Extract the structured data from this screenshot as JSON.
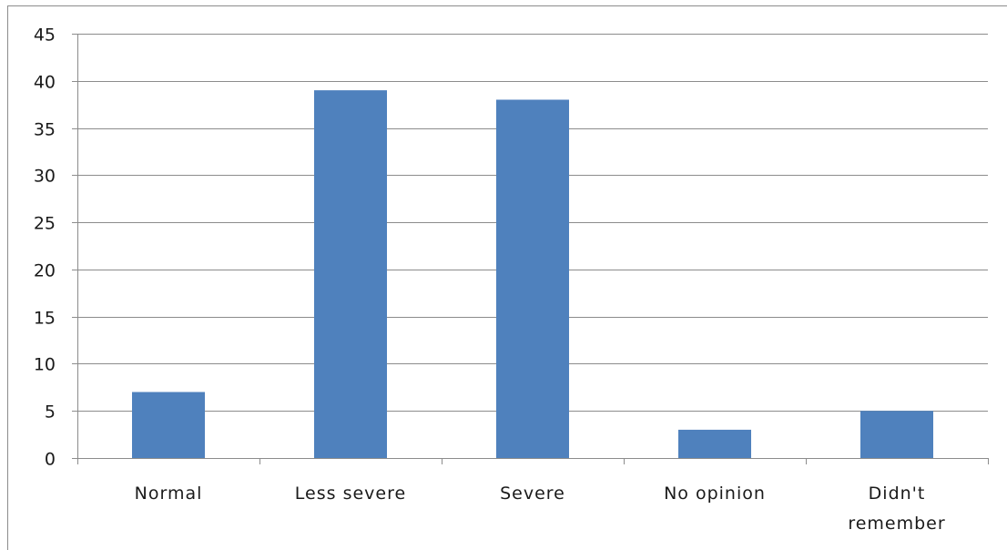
{
  "chart_data": {
    "type": "bar",
    "categories": [
      "Normal",
      "Less severe",
      "Severe",
      "No opinion",
      "Didn't remember"
    ],
    "category_label_lines": [
      [
        "Normal"
      ],
      [
        "Less severe"
      ],
      [
        "Severe"
      ],
      [
        "No opinion"
      ],
      [
        "Didn't",
        "remember"
      ]
    ],
    "values": [
      7,
      39,
      38,
      3,
      5
    ],
    "ylim": [
      0,
      45
    ],
    "y_ticks": [
      0,
      5,
      10,
      15,
      20,
      25,
      30,
      35,
      40,
      45
    ],
    "grid": true,
    "legend": "none",
    "bar_color": "#4f81bd",
    "grid_color": "#8c8c8c",
    "title": "",
    "xlabel": "",
    "ylabel": ""
  }
}
